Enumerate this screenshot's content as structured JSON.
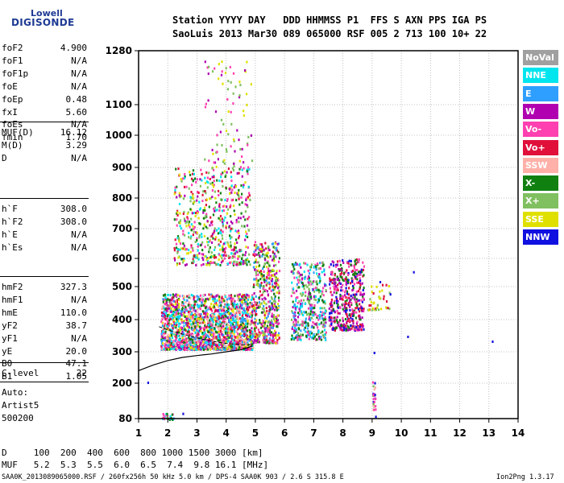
{
  "logo": {
    "line1": "Lowell",
    "line2": "DIGISONDE"
  },
  "header": {
    "line1": "Station YYYY DAY   DDD HHMMSS P1  FFS S AXN PPS IGA PS",
    "line2": "SaoLuis 2013 Mar30 089 065000 RSF 005 2 713 100 10+ 22"
  },
  "params": {
    "group1": [
      {
        "k": "foF2",
        "v": "4.900"
      },
      {
        "k": "foF1",
        "v": "N/A"
      },
      {
        "k": "foF1p",
        "v": "N/A"
      },
      {
        "k": "foE",
        "v": "N/A"
      },
      {
        "k": "foEp",
        "v": "0.48"
      },
      {
        "k": "fxI",
        "v": "5.60"
      },
      {
        "k": "foEs",
        "v": "N/A"
      },
      {
        "k": "fmin",
        "v": "1.70"
      }
    ],
    "group2": [
      {
        "k": "MUF(D)",
        "v": "16.12"
      },
      {
        "k": "M(D)",
        "v": "3.29"
      },
      {
        "k": "D",
        "v": "N/A"
      }
    ],
    "group3": [
      {
        "k": "h`F",
        "v": "308.0"
      },
      {
        "k": "h`F2",
        "v": "308.0"
      },
      {
        "k": "h`E",
        "v": "N/A"
      },
      {
        "k": "h`Es",
        "v": "N/A"
      }
    ],
    "group4": [
      {
        "k": "hmF2",
        "v": "327.3"
      },
      {
        "k": "hmF1",
        "v": "N/A"
      },
      {
        "k": "hmE",
        "v": "110.0"
      },
      {
        "k": "yF2",
        "v": "38.7"
      },
      {
        "k": "yF1",
        "v": "N/A"
      },
      {
        "k": "yE",
        "v": "20.0"
      },
      {
        "k": "B0",
        "v": "47.1"
      },
      {
        "k": "B1",
        "v": "1.05"
      }
    ],
    "group5": [
      {
        "k": "C-level",
        "v": "22"
      }
    ],
    "group6": [
      {
        "k": "Auto:",
        "v": ""
      },
      {
        "k": "Artist5",
        "v": ""
      },
      {
        "k": "500200",
        "v": ""
      }
    ]
  },
  "legend": [
    {
      "label": "NoVal",
      "color": "#a0a0a0"
    },
    {
      "label": "NNE",
      "color": "#00e5ee"
    },
    {
      "label": "E",
      "color": "#2f9fff"
    },
    {
      "label": "W",
      "color": "#b000b0"
    },
    {
      "label": "Vo-",
      "color": "#ff40b0"
    },
    {
      "label": "Vo+",
      "color": "#e0103a"
    },
    {
      "label": "SSW",
      "color": "#ffb0a8"
    },
    {
      "label": "X-",
      "color": "#108010"
    },
    {
      "label": "X+",
      "color": "#80c060"
    },
    {
      "label": "SSE",
      "color": "#e0e000"
    },
    {
      "label": "NNW",
      "color": "#1010e0"
    }
  ],
  "footer": {
    "d_line": "D     100  200  400  600  800 1000 1500 3000 [km]",
    "muf_line": "MUF   5.2  5.3  5.5  6.0  6.5  7.4  9.8 16.1 [MHz]",
    "file_line": "SAA0K_2013089065000.RSF / 260fx256h 50 kHz 5.0 km / DPS-4 SAA0K 903 / 2.6 S 315.8 E",
    "version": "Ion2Png 1.3.17"
  },
  "chart_data": {
    "type": "scatter",
    "x_ticks": [
      1,
      2,
      3,
      4,
      5,
      6,
      7,
      8,
      9,
      10,
      11,
      12,
      13,
      14
    ],
    "y_ticks": [
      80,
      200,
      300,
      400,
      500,
      600,
      700,
      800,
      900,
      1000,
      1100,
      1280
    ],
    "xlim": [
      1,
      14
    ],
    "y_scale": "log",
    "grid": "dotted",
    "legend_position": "right",
    "solid_profile": [
      [
        1.0,
        240
      ],
      [
        1.5,
        258
      ],
      [
        2.0,
        272
      ],
      [
        2.5,
        282
      ],
      [
        3.0,
        288
      ],
      [
        3.5,
        293
      ],
      [
        4.0,
        300
      ],
      [
        4.5,
        306
      ],
      [
        4.9,
        318
      ]
    ],
    "dashed_trace": [
      [
        1.7,
        378
      ],
      [
        2.0,
        368
      ],
      [
        2.5,
        355
      ],
      [
        3.0,
        343
      ],
      [
        3.5,
        333
      ],
      [
        4.0,
        326
      ],
      [
        4.5,
        322
      ],
      [
        4.9,
        322
      ]
    ],
    "clusters": [
      {
        "fmin": 1.75,
        "fmax": 4.9,
        "hmin": 310,
        "hmax": 480,
        "density": 1900,
        "colors": [
          "Vo-",
          "W",
          "Vo+",
          "SSE",
          "NNE",
          "E",
          "X-",
          "SSW"
        ]
      },
      {
        "fmin": 2.2,
        "fmax": 4.8,
        "hmin": 580,
        "hmax": 900,
        "density": 600,
        "colors": [
          "Vo-",
          "Vo+",
          "W",
          "SSE",
          "X-",
          "NNE",
          "X+"
        ]
      },
      {
        "fmin": 4.9,
        "fmax": 5.8,
        "hmin": 330,
        "hmax": 660,
        "density": 500,
        "colors": [
          "SSE",
          "X+",
          "W",
          "Vo-",
          "Vo+",
          "E",
          "X-"
        ]
      },
      {
        "fmin": 6.2,
        "fmax": 7.4,
        "hmin": 340,
        "hmax": 590,
        "density": 420,
        "colors": [
          "W",
          "X-",
          "Vo-",
          "E",
          "X+",
          "NNE"
        ]
      },
      {
        "fmin": 7.5,
        "fmax": 8.7,
        "hmin": 370,
        "hmax": 600,
        "density": 450,
        "colors": [
          "W",
          "Vo-",
          "Vo+",
          "X-",
          "NNW"
        ]
      },
      {
        "fmin": 3.2,
        "fmax": 4.9,
        "hmin": 900,
        "hmax": 1250,
        "density": 90,
        "colors": [
          "SSE",
          "W",
          "Vo-",
          "X+"
        ]
      },
      {
        "fmin": 1.8,
        "fmax": 2.2,
        "hmin": 80,
        "hmax": 100,
        "density": 25,
        "colors": [
          "X-",
          "NNE",
          "Vo-",
          "E"
        ]
      },
      {
        "fmin": 9.0,
        "fmax": 9.1,
        "hmin": 110,
        "hmax": 210,
        "density": 25,
        "colors": [
          "Vo-",
          "SSW",
          "X+",
          "NNW"
        ]
      },
      {
        "fmin": 8.8,
        "fmax": 9.6,
        "hmin": 430,
        "hmax": 510,
        "density": 40,
        "colors": [
          "SSE",
          "X+",
          "Vo+"
        ]
      }
    ]
  }
}
